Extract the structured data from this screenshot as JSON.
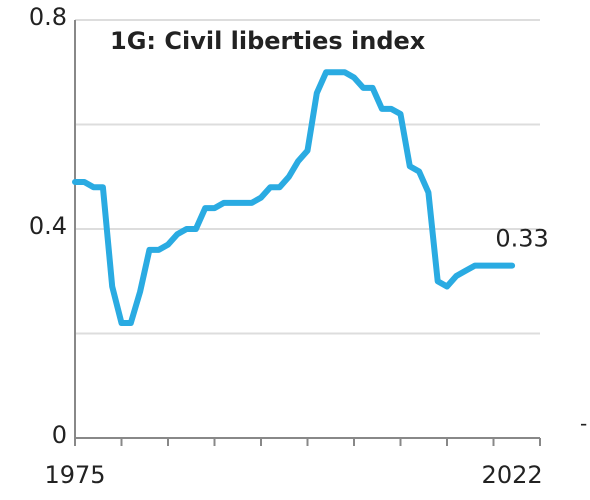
{
  "chart_data": {
    "type": "line",
    "title": "1G: Civil liberties index",
    "x": [
      1975,
      1976,
      1977,
      1978,
      1979,
      1980,
      1981,
      1982,
      1983,
      1984,
      1985,
      1986,
      1987,
      1988,
      1989,
      1990,
      1991,
      1992,
      1993,
      1994,
      1995,
      1996,
      1997,
      1998,
      1999,
      2000,
      2001,
      2002,
      2003,
      2004,
      2005,
      2006,
      2007,
      2008,
      2009,
      2010,
      2011,
      2012,
      2013,
      2014,
      2015,
      2016,
      2017,
      2018,
      2019,
      2020,
      2021,
      2022
    ],
    "series": [
      {
        "color": "#2aabe2",
        "values": [
          0.49,
          0.49,
          0.48,
          0.48,
          0.29,
          0.22,
          0.22,
          0.28,
          0.36,
          0.36,
          0.37,
          0.39,
          0.4,
          0.4,
          0.44,
          0.44,
          0.45,
          0.45,
          0.45,
          0.45,
          0.46,
          0.48,
          0.48,
          0.5,
          0.53,
          0.55,
          0.66,
          0.7,
          0.7,
          0.7,
          0.69,
          0.67,
          0.67,
          0.63,
          0.63,
          0.62,
          0.52,
          0.51,
          0.47,
          0.3,
          0.29,
          0.31,
          0.32,
          0.33,
          0.33,
          0.33,
          0.33,
          0.33
        ]
      }
    ],
    "end_label": "0.33",
    "xlim": [
      1975,
      2025
    ],
    "xticks": [
      {
        "value": 1975,
        "label": "1975"
      },
      {
        "value": 1980,
        "label": null
      },
      {
        "value": 1985,
        "label": null
      },
      {
        "value": 1990,
        "label": null
      },
      {
        "value": 1995,
        "label": null
      },
      {
        "value": 2000,
        "label": null
      },
      {
        "value": 2005,
        "label": null
      },
      {
        "value": 2010,
        "label": null
      },
      {
        "value": 2015,
        "label": null
      },
      {
        "value": 2020,
        "label": null
      },
      {
        "value": 2022,
        "label": "2022"
      },
      {
        "value": 2025,
        "label": null
      }
    ],
    "ylim": [
      0,
      0.8
    ],
    "yticks": [
      {
        "value": 0,
        "label": "0"
      },
      {
        "value": 0.2,
        "label": null
      },
      {
        "value": 0.4,
        "label": "0.4"
      },
      {
        "value": 0.6,
        "label": null
      },
      {
        "value": 0.8,
        "label": "0.8"
      }
    ],
    "grid": true,
    "annotation": "-"
  }
}
